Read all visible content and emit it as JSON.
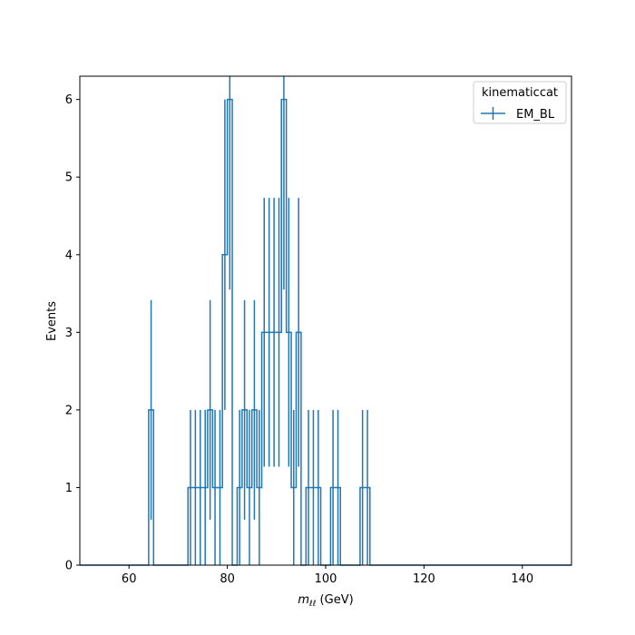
{
  "chart_data": {
    "type": "histogram",
    "xlabel_main": "m",
    "xlabel_sub": "ℓℓ",
    "xlabel_unit": " (GeV)",
    "ylabel": "Events",
    "xlim": [
      50,
      150
    ],
    "ylim": [
      0,
      6.3
    ],
    "xticks": [
      60,
      80,
      100,
      120,
      140
    ],
    "yticks": [
      0,
      1,
      2,
      3,
      4,
      5,
      6
    ],
    "bin_width": 1,
    "color": "#1f77b4",
    "legend": {
      "title": "kinematiccat",
      "entries": [
        "EM_BL"
      ],
      "placement": "top-right"
    },
    "bins": [
      {
        "x": 64,
        "y": 2
      },
      {
        "x": 72,
        "y": 1
      },
      {
        "x": 73,
        "y": 1
      },
      {
        "x": 74,
        "y": 1
      },
      {
        "x": 75,
        "y": 1
      },
      {
        "x": 76,
        "y": 2
      },
      {
        "x": 77,
        "y": 1
      },
      {
        "x": 78,
        "y": 1
      },
      {
        "x": 79,
        "y": 4
      },
      {
        "x": 80,
        "y": 6
      },
      {
        "x": 82,
        "y": 1
      },
      {
        "x": 83,
        "y": 2
      },
      {
        "x": 84,
        "y": 1
      },
      {
        "x": 85,
        "y": 2
      },
      {
        "x": 86,
        "y": 1
      },
      {
        "x": 87,
        "y": 3
      },
      {
        "x": 88,
        "y": 3
      },
      {
        "x": 89,
        "y": 3
      },
      {
        "x": 90,
        "y": 3
      },
      {
        "x": 91,
        "y": 6
      },
      {
        "x": 92,
        "y": 3
      },
      {
        "x": 93,
        "y": 1
      },
      {
        "x": 94,
        "y": 3
      },
      {
        "x": 96,
        "y": 1
      },
      {
        "x": 97,
        "y": 1
      },
      {
        "x": 98,
        "y": 1
      },
      {
        "x": 101,
        "y": 1
      },
      {
        "x": 102,
        "y": 1
      },
      {
        "x": 107,
        "y": 1
      },
      {
        "x": 108,
        "y": 1
      }
    ]
  }
}
